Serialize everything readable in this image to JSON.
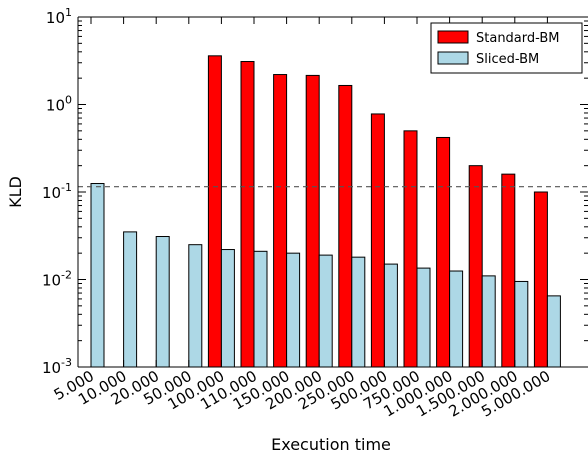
{
  "chart_data": {
    "type": "bar",
    "yscale": "log",
    "ylim": [
      0.001,
      10
    ],
    "xlabel": "Execution time",
    "ylabel": "KLD",
    "categories": [
      "5.000",
      "10.000",
      "20.000",
      "50.000",
      "100.000",
      "110.000",
      "150.000",
      "200.000",
      "250.000",
      "500.000",
      "750.000",
      "1.000.000",
      "1.500.000",
      "2.000.000",
      "5.000.000"
    ],
    "series": [
      {
        "name": "Standard-BM",
        "color": "#ff0000",
        "values": [
          null,
          null,
          null,
          null,
          3.6,
          3.1,
          2.2,
          2.15,
          1.65,
          0.78,
          0.5,
          0.42,
          0.2,
          0.16,
          0.1
        ]
      },
      {
        "name": "Sliced-BM",
        "color": "#add8e6",
        "values": [
          0.125,
          0.035,
          0.031,
          0.025,
          0.022,
          0.021,
          0.02,
          0.019,
          0.018,
          0.015,
          0.0135,
          0.0125,
          0.011,
          0.0095,
          0.0065
        ]
      }
    ],
    "reference_line": {
      "y": 0.115,
      "style": "dashed"
    },
    "legend_position": "top-right",
    "y_tick_labels": [
      {
        "base": "10",
        "exp": "-3"
      },
      {
        "base": "10",
        "exp": "-2"
      },
      {
        "base": "10",
        "exp": "-1"
      },
      {
        "base": "10",
        "exp": "0"
      },
      {
        "base": "10",
        "exp": "1"
      }
    ]
  }
}
